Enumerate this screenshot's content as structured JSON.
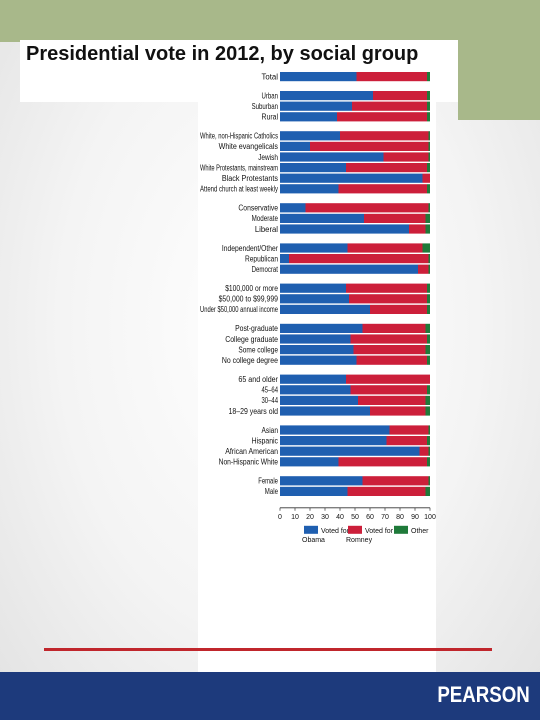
{
  "slide": {
    "title": "Presidential vote in 2012, by social group",
    "brand": "PEARSON"
  },
  "colors": {
    "obama": "#1f5fb0",
    "romney": "#cc1f3a",
    "other": "#1f7a3a",
    "band": "#a8b88a",
    "footer": "#1d3a7c",
    "rule": "#c0262c"
  },
  "chart_data": {
    "type": "bar",
    "orientation": "horizontal-stacked",
    "xlim": [
      0,
      100
    ],
    "xticks": [
      0,
      10,
      20,
      30,
      40,
      50,
      60,
      70,
      80,
      90,
      100
    ],
    "series_names": [
      "Voted for Obama",
      "Voted for Romney",
      "Other"
    ],
    "groups": [
      {
        "rows": [
          {
            "label": "Total",
            "values": [
              51,
              47,
              2
            ]
          }
        ]
      },
      {
        "rows": [
          {
            "label": "Urban",
            "values": [
              62,
              36,
              2
            ]
          },
          {
            "label": "Suburban",
            "values": [
              48,
              50,
              2
            ]
          },
          {
            "label": "Rural",
            "values": [
              38,
              60,
              2
            ]
          }
        ]
      },
      {
        "rows": [
          {
            "label": "White, non-Hispanic Catholics",
            "values": [
              40,
              59,
              1
            ]
          },
          {
            "label": "White evangelicals",
            "values": [
              20,
              79,
              1
            ]
          },
          {
            "label": "Jewish",
            "values": [
              69,
              30,
              1
            ]
          },
          {
            "label": "White Protestants, mainstream",
            "values": [
              44,
              54,
              2
            ]
          },
          {
            "label": "Black Protestants",
            "values": [
              95,
              5,
              0
            ]
          },
          {
            "label": "Attend church at least weekly",
            "values": [
              39,
              59,
              2
            ]
          }
        ]
      },
      {
        "rows": [
          {
            "label": "Conservative",
            "values": [
              17,
              82,
              1
            ]
          },
          {
            "label": "Moderate",
            "values": [
              56,
              41,
              3
            ]
          },
          {
            "label": "Liberal",
            "values": [
              86,
              11,
              3
            ]
          }
        ]
      },
      {
        "rows": [
          {
            "label": "Independent/Other",
            "values": [
              45,
              50,
              5
            ]
          },
          {
            "label": "Republican",
            "values": [
              6,
              93,
              1
            ]
          },
          {
            "label": "Democrat",
            "values": [
              92,
              7,
              1
            ]
          }
        ]
      },
      {
        "rows": [
          {
            "label": "$100,000 or more",
            "values": [
              44,
              54,
              2
            ]
          },
          {
            "label": "$50,000 to $99,999",
            "values": [
              46,
              52,
              2
            ]
          },
          {
            "label": "Under $50,000 annual income",
            "values": [
              60,
              38,
              2
            ]
          }
        ]
      },
      {
        "rows": [
          {
            "label": "Post-graduate",
            "values": [
              55,
              42,
              3
            ]
          },
          {
            "label": "College graduate",
            "values": [
              47,
              51,
              2
            ]
          },
          {
            "label": "Some college",
            "values": [
              49,
              48,
              3
            ]
          },
          {
            "label": "No college degree",
            "values": [
              51,
              47,
              2
            ]
          }
        ]
      },
      {
        "rows": [
          {
            "label": "65 and older",
            "values": [
              44,
              56,
              0
            ]
          },
          {
            "label": "45–64",
            "values": [
              47,
              51,
              2
            ]
          },
          {
            "label": "30–44",
            "values": [
              52,
              45,
              3
            ]
          },
          {
            "label": "18–29 years old",
            "values": [
              60,
              37,
              3
            ]
          }
        ]
      },
      {
        "rows": [
          {
            "label": "Asian",
            "values": [
              73,
              26,
              1
            ]
          },
          {
            "label": "Hispanic",
            "values": [
              71,
              27,
              2
            ]
          },
          {
            "label": "African American",
            "values": [
              93,
              6,
              1
            ]
          },
          {
            "label": "Non-Hispanic White",
            "values": [
              39,
              59,
              2
            ]
          }
        ]
      },
      {
        "rows": [
          {
            "label": "Female",
            "values": [
              55,
              44,
              1
            ]
          },
          {
            "label": "Male",
            "values": [
              45,
              52,
              3
            ]
          }
        ]
      }
    ],
    "legend": [
      {
        "label": "Voted for Obama"
      },
      {
        "label": "Voted for Romney"
      },
      {
        "label": "Other"
      }
    ]
  }
}
